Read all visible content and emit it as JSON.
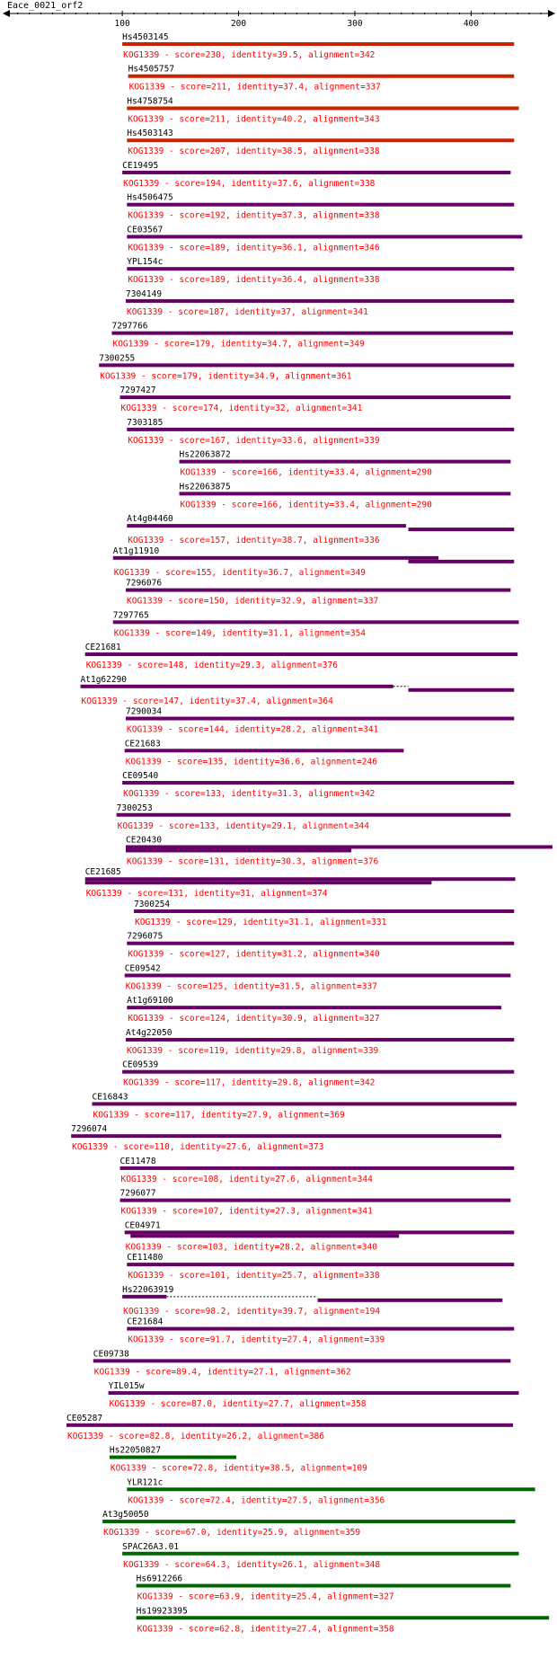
{
  "title": "Eace_0021_orf2",
  "axis": {
    "range": [
      1,
      470
    ],
    "ticks": [
      100,
      200,
      300,
      400
    ]
  },
  "colors": {
    "red": "#cc2200",
    "purple": "#660066",
    "green": "#006600",
    "summary": "#ff0000",
    "black": "#000000"
  },
  "hits": [
    {
      "label": "Hs4503145",
      "summary": "KOG1339 - score=230, identity=39.5, alignment=342",
      "color": "red",
      "labelStart": 100,
      "segments": [
        [
          100,
          437
        ]
      ]
    },
    {
      "label": "Hs4505757",
      "summary": "KOG1339 - score=211, identity=37.4, alignment=337",
      "color": "red",
      "labelStart": 105,
      "segments": [
        [
          105,
          437
        ]
      ]
    },
    {
      "label": "Hs4758754",
      "summary": "KOG1339 - score=211, identity=40.2, alignment=343",
      "color": "red",
      "labelStart": 104,
      "segments": [
        [
          104,
          441
        ]
      ]
    },
    {
      "label": "Hs4503143",
      "summary": "KOG1339 - score=207, identity=38.5, alignment=338",
      "color": "red",
      "labelStart": 104,
      "segments": [
        [
          104,
          437
        ]
      ]
    },
    {
      "label": "CE19495",
      "summary": "KOG1339 - score=194, identity=37.6, alignment=338",
      "color": "purple",
      "labelStart": 100,
      "segments": [
        [
          100,
          434
        ]
      ]
    },
    {
      "label": "Hs4506475",
      "summary": "KOG1339 - score=192, identity=37.3, alignment=338",
      "color": "purple",
      "labelStart": 104,
      "segments": [
        [
          104,
          437
        ]
      ]
    },
    {
      "label": "CE03567",
      "summary": "KOG1339 - score=189, identity=36.1, alignment=346",
      "color": "purple",
      "labelStart": 104,
      "segments": [
        [
          104,
          444
        ]
      ]
    },
    {
      "label": "YPL154c",
      "summary": "KOG1339 - score=189, identity=36.4, alignment=338",
      "color": "purple",
      "labelStart": 104,
      "segments": [
        [
          104,
          437
        ]
      ]
    },
    {
      "label": "7304149",
      "summary": "KOG1339 - score=187, identity=37, alignment=341",
      "color": "purple",
      "labelStart": 103,
      "segments": [
        [
          103,
          437
        ]
      ]
    },
    {
      "label": "7297766",
      "summary": "KOG1339 - score=179, identity=34.7, alignment=349",
      "color": "purple",
      "labelStart": 91,
      "segments": [
        [
          91,
          436
        ]
      ]
    },
    {
      "label": "7300255",
      "summary": "KOG1339 - score=179, identity=34.9, alignment=361",
      "color": "purple",
      "labelStart": 80,
      "segments": [
        [
          80,
          437
        ]
      ]
    },
    {
      "label": "7297427",
      "summary": "KOG1339 - score=174, identity=32, alignment=341",
      "color": "purple",
      "labelStart": 98,
      "segments": [
        [
          98,
          434
        ]
      ]
    },
    {
      "label": "7303185",
      "summary": "KOG1339 - score=167, identity=33.6, alignment=339",
      "color": "purple",
      "labelStart": 104,
      "segments": [
        [
          104,
          437
        ]
      ]
    },
    {
      "label": "Hs22063872",
      "summary": "KOG1339 - score=166, identity=33.4, alignment=290",
      "color": "purple",
      "labelStart": 149,
      "segments": [
        [
          149,
          434
        ]
      ]
    },
    {
      "label": "Hs22063875",
      "summary": "KOG1339 - score=166, identity=33.4, alignment=290",
      "color": "purple",
      "labelStart": 149,
      "segments": [
        [
          149,
          434
        ]
      ]
    },
    {
      "label": "At4g04460",
      "summary": "KOG1339 - score=157, identity=38.7, alignment=336",
      "color": "purple",
      "labelStart": 104,
      "segments": [
        [
          104,
          344
        ],
        [
          346,
          437
        ]
      ]
    },
    {
      "label": "At1g11910",
      "summary": "KOG1339 - score=155, identity=36.7, alignment=349",
      "color": "purple",
      "labelStart": 92,
      "segments": [
        [
          92,
          372
        ],
        [
          346,
          437
        ]
      ]
    },
    {
      "label": "7296076",
      "summary": "KOG1339 - score=150, identity=32.9, alignment=337",
      "color": "purple",
      "labelStart": 103,
      "segments": [
        [
          103,
          434
        ]
      ]
    },
    {
      "label": "7297765",
      "summary": "KOG1339 - score=149, identity=31.1, alignment=354",
      "color": "purple",
      "labelStart": 92,
      "segments": [
        [
          92,
          441
        ]
      ]
    },
    {
      "label": "CE21681",
      "summary": "KOG1339 - score=148, identity=29.3, alignment=376",
      "color": "purple",
      "labelStart": 68,
      "segments": [
        [
          68,
          440
        ]
      ]
    },
    {
      "label": "At1g62290",
      "summary": "KOG1339 - score=147, identity=37.4, alignment=364",
      "color": "purple",
      "labelStart": 64,
      "segments": [
        [
          64,
          333
        ],
        [
          346,
          437
        ]
      ],
      "gaps": [
        [
          333,
          346
        ]
      ]
    },
    {
      "label": "7290034",
      "summary": "KOG1339 - score=144, identity=28.2, alignment=341",
      "color": "purple",
      "labelStart": 103,
      "segments": [
        [
          103,
          437
        ]
      ]
    },
    {
      "label": "CE21683",
      "summary": "KOG1339 - score=135, identity=36.6, alignment=246",
      "color": "purple",
      "labelStart": 102,
      "segments": [
        [
          102,
          342
        ]
      ]
    },
    {
      "label": "CE09540",
      "summary": "KOG1339 - score=133, identity=31.3, alignment=342",
      "color": "purple",
      "labelStart": 100,
      "segments": [
        [
          100,
          437
        ]
      ]
    },
    {
      "label": "7300253",
      "summary": "KOG1339 - score=133, identity=29.1, alignment=344",
      "color": "purple",
      "labelStart": 95,
      "segments": [
        [
          95,
          434
        ]
      ]
    },
    {
      "label": "CE20430",
      "summary": "KOG1339 - score=131, identity=30.3, alignment=376",
      "color": "purple",
      "labelStart": 103,
      "segments": [
        [
          103,
          470
        ],
        [
          103,
          297
        ]
      ]
    },
    {
      "label": "CE21685",
      "summary": "KOG1339 - score=131, identity=31, alignment=374",
      "color": "purple",
      "labelStart": 68,
      "segments": [
        [
          68,
          438
        ],
        [
          68,
          366
        ]
      ]
    },
    {
      "label": "7300254",
      "summary": "KOG1339 - score=129, identity=31.1, alignment=331",
      "color": "purple",
      "labelStart": 110,
      "segments": [
        [
          110,
          437
        ]
      ]
    },
    {
      "label": "7296075",
      "summary": "KOG1339 - score=127, identity=31.2, alignment=340",
      "color": "purple",
      "labelStart": 104,
      "segments": [
        [
          104,
          437
        ]
      ]
    },
    {
      "label": "CE09542",
      "summary": "KOG1339 - score=125, identity=31.5, alignment=337",
      "color": "purple",
      "labelStart": 102,
      "segments": [
        [
          102,
          434
        ]
      ]
    },
    {
      "label": "At1g69100",
      "summary": "KOG1339 - score=124, identity=30.9, alignment=327",
      "color": "purple",
      "labelStart": 104,
      "segments": [
        [
          104,
          426
        ]
      ]
    },
    {
      "label": "At4g22050",
      "summary": "KOG1339 - score=119, identity=29.8, alignment=339",
      "color": "purple",
      "labelStart": 103,
      "segments": [
        [
          103,
          437
        ]
      ]
    },
    {
      "label": "CE09539",
      "summary": "KOG1339 - score=117, identity=29.8, alignment=342",
      "color": "purple",
      "labelStart": 100,
      "segments": [
        [
          100,
          437
        ]
      ]
    },
    {
      "label": "CE16843",
      "summary": "KOG1339 - score=117, identity=27.9, alignment=369",
      "color": "purple",
      "labelStart": 74,
      "segments": [
        [
          74,
          439
        ]
      ]
    },
    {
      "label": "7296074",
      "summary": "KOG1339 - score=110, identity=27.6, alignment=373",
      "color": "purple",
      "labelStart": 56,
      "segments": [
        [
          56,
          426
        ]
      ]
    },
    {
      "label": "CE11478",
      "summary": "KOG1339 - score=108, identity=27.6, alignment=344",
      "color": "purple",
      "labelStart": 98,
      "segments": [
        [
          98,
          437
        ]
      ]
    },
    {
      "label": "7296077",
      "summary": "KOG1339 - score=107, identity=27.3, alignment=341",
      "color": "purple",
      "labelStart": 98,
      "segments": [
        [
          98,
          434
        ]
      ]
    },
    {
      "label": "CE04971",
      "summary": "KOG1339 - score=103, identity=28.2, alignment=340",
      "color": "purple",
      "labelStart": 102,
      "segments": [
        [
          102,
          437
        ],
        [
          107,
          338
        ]
      ]
    },
    {
      "label": "CE11480",
      "summary": "KOG1339 - score=101, identity=25.7, alignment=338",
      "color": "purple",
      "labelStart": 104,
      "segments": [
        [
          104,
          437
        ]
      ]
    },
    {
      "label": "Hs22063919",
      "summary": "KOG1339 - score=98.2, identity=39.7, alignment=194",
      "color": "purple",
      "labelStart": 100,
      "segments": [
        [
          100,
          138
        ],
        [
          268,
          427
        ]
      ],
      "gaps": [
        [
          138,
          268
        ]
      ]
    },
    {
      "label": "CE21684",
      "summary": "KOG1339 - score=91.7, identity=27.4, alignment=339",
      "color": "purple",
      "labelStart": 104,
      "segments": [
        [
          104,
          437
        ]
      ]
    },
    {
      "label": "CE09738",
      "summary": "KOG1339 - score=89.4, identity=27.1, alignment=362",
      "color": "purple",
      "labelStart": 75,
      "segments": [
        [
          75,
          434
        ]
      ]
    },
    {
      "label": "YIL015w",
      "summary": "KOG1339 - score=87.0, identity=27.7, alignment=358",
      "color": "purple",
      "labelStart": 88,
      "segments": [
        [
          88,
          441
        ]
      ]
    },
    {
      "label": "CE05287",
      "summary": "KOG1339 - score=82.8, identity=26.2, alignment=386",
      "color": "purple",
      "labelStart": 52,
      "segments": [
        [
          52,
          436
        ]
      ]
    },
    {
      "label": "Hs22050827",
      "summary": "KOG1339 - score=72.8, identity=38.5, alignment=109",
      "color": "green",
      "labelStart": 89,
      "segments": [
        [
          89,
          198
        ]
      ]
    },
    {
      "label": "YLR121c",
      "summary": "KOG1339 - score=72.4, identity=27.5, alignment=356",
      "color": "green",
      "labelStart": 104,
      "segments": [
        [
          104,
          455
        ]
      ]
    },
    {
      "label": "At3g50050",
      "summary": "KOG1339 - score=67.0, identity=25.9, alignment=359",
      "color": "green",
      "labelStart": 83,
      "segments": [
        [
          83,
          438
        ]
      ]
    },
    {
      "label": "SPAC26A3.01",
      "summary": "KOG1339 - score=64.3, identity=26.1, alignment=348",
      "color": "green",
      "labelStart": 100,
      "segments": [
        [
          100,
          441
        ]
      ]
    },
    {
      "label": "Hs6912266",
      "summary": "KOG1339 - score=63.9, identity=25.4, alignment=327",
      "color": "green",
      "labelStart": 112,
      "segments": [
        [
          112,
          434
        ]
      ]
    },
    {
      "label": "Hs19923395",
      "summary": "KOG1339 - score=62.8, identity=27.4, alignment=358",
      "color": "green",
      "labelStart": 112,
      "segments": [
        [
          112,
          467
        ]
      ]
    }
  ]
}
